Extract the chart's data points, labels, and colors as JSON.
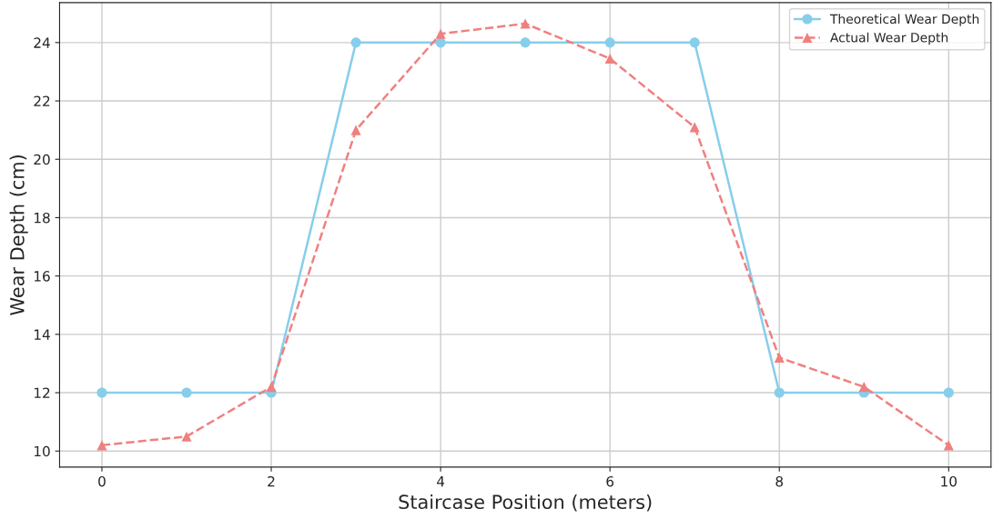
{
  "chart_data": {
    "type": "line",
    "xlabel": "Staircase Position (meters)",
    "ylabel": "Wear Depth (cm)",
    "x": [
      0,
      1,
      2,
      3,
      4,
      5,
      6,
      7,
      8,
      9,
      10
    ],
    "series": [
      {
        "name": "Theoretical Wear Depth",
        "color": "#87ceeb",
        "marker": "circle",
        "line_style": "solid",
        "values": [
          12,
          12,
          12,
          24,
          24,
          24,
          24,
          24,
          12,
          12,
          12
        ]
      },
      {
        "name": "Actual Wear Depth",
        "color": "#f08080",
        "marker": "triangle",
        "line_style": "dashed",
        "values": [
          10.2,
          10.5,
          12.2,
          21.0,
          24.3,
          24.65,
          23.45,
          21.1,
          13.2,
          12.2,
          10.2
        ]
      }
    ],
    "xlim": [
      -0.5,
      10.5
    ],
    "xticks": [
      0,
      2,
      4,
      6,
      8,
      10
    ],
    "ylim": [
      9.45,
      25.37
    ],
    "yticks": [
      10,
      12,
      14,
      16,
      18,
      20,
      22,
      24
    ],
    "grid": true,
    "legend": "top right"
  }
}
